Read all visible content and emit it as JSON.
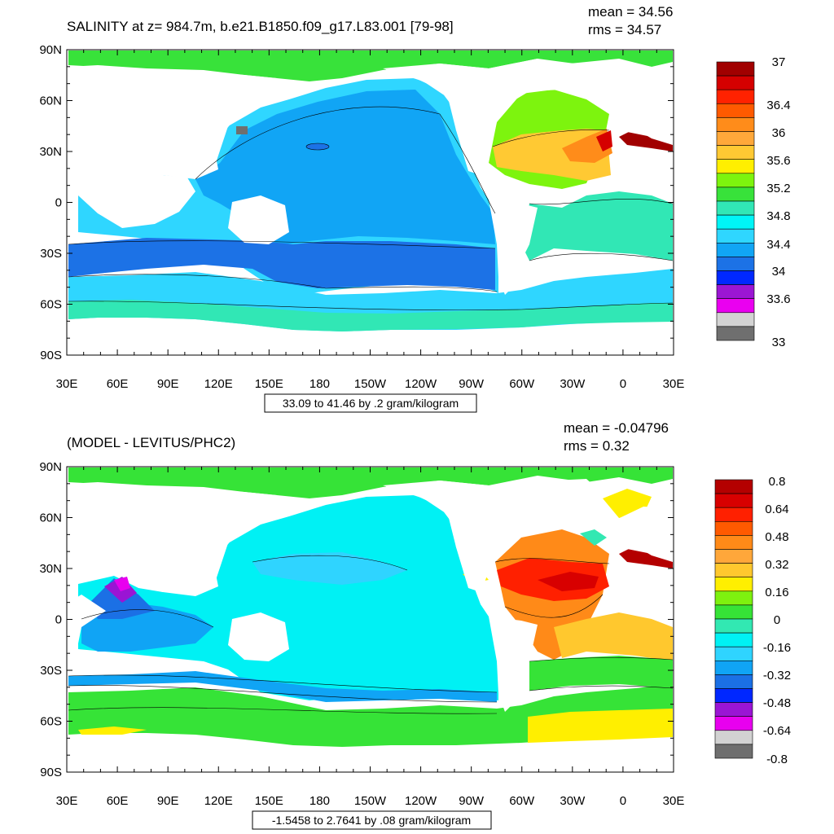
{
  "panels": [
    {
      "id": "top",
      "title": "SALINITY at z= 984.7m, b.e21.B1850.f09_g17.L83.001 [79-98]",
      "mean_text": "mean = 34.56",
      "rms_text": "rms = 34.57",
      "subtitle": "33.09 to 41.46 by .2 gram/kilogram",
      "colorbar": {
        "colors": [
          "#a10000",
          "#d50000",
          "#ff2200",
          "#ff5a00",
          "#ff8c1a",
          "#ffa83a",
          "#ffc933",
          "#ffef00",
          "#7df40e",
          "#38e23a",
          "#31e7b5",
          "#00f5f7",
          "#2fd6ff",
          "#11a5f5",
          "#1c72e6",
          "#0028ff",
          "#9b16d3",
          "#ea00f0",
          "#d3d3d3",
          "#6f6f6f"
        ],
        "labels": [
          "37",
          "36.4",
          "36",
          "35.6",
          "35.2",
          "34.8",
          "34.4",
          "34",
          "33.6",
          "33"
        ]
      }
    },
    {
      "id": "bottom",
      "title": "(MODEL - LEVITUS/PHC2)",
      "mean_text": "mean = -0.04796",
      "rms_text": "rms = 0.32",
      "subtitle": "-1.5458 to 2.7641 by .08 gram/kilogram",
      "colorbar": {
        "colors": [
          "#b40000",
          "#d80000",
          "#ff2000",
          "#ff5a00",
          "#ff8a18",
          "#ffa73a",
          "#ffc82e",
          "#ffef00",
          "#7ef10f",
          "#36e337",
          "#32e8b2",
          "#00f1f4",
          "#2fd4ff",
          "#10a4f5",
          "#1b70e5",
          "#0027ff",
          "#9a15d4",
          "#e800ef",
          "#d2d2d2",
          "#6e6e6e"
        ],
        "labels": [
          "0.8",
          "0.64",
          "0.48",
          "0.32",
          "0.16",
          "0",
          "-0.16",
          "-0.32",
          "-0.48",
          "-0.64",
          "-0.8"
        ]
      }
    }
  ],
  "axes": {
    "lat_labels": [
      "90N",
      "60N",
      "30N",
      "0",
      "30S",
      "60S",
      "90S"
    ],
    "lon_labels": [
      "30E",
      "60E",
      "90E",
      "120E",
      "150E",
      "180",
      "150W",
      "120W",
      "90W",
      "60W",
      "30W",
      "0",
      "30E"
    ]
  },
  "map_data": {
    "type": "map",
    "projection": "cylindrical equidistant",
    "variable": "salinity",
    "units": "gram/kilogram"
  }
}
